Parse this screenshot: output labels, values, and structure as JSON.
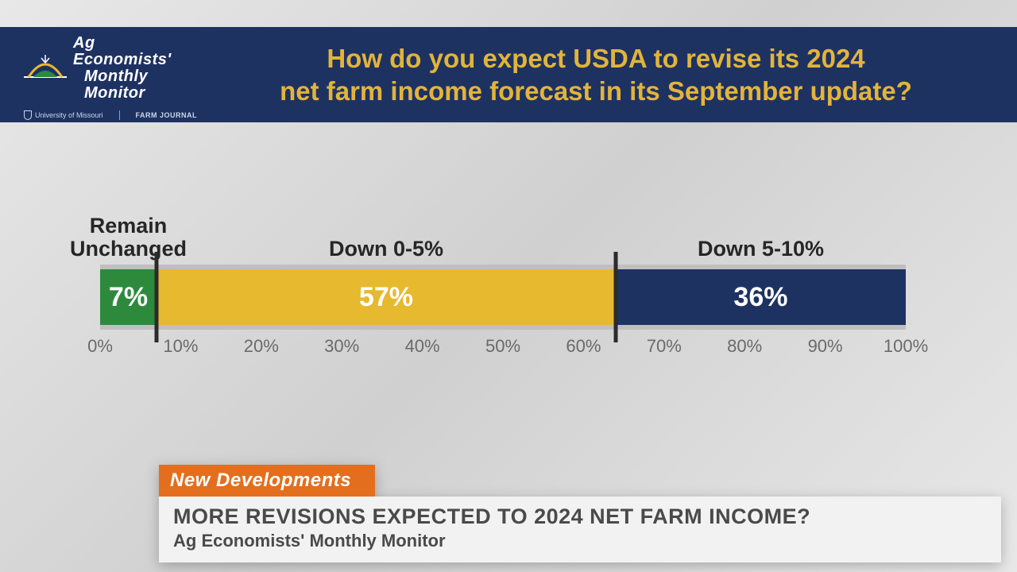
{
  "header": {
    "logo": {
      "line1": "Ag Economists'",
      "line2": "Monthly",
      "line3": "Monitor",
      "sub_left": "University of Missouri",
      "sub_right": "FARM JOURNAL"
    },
    "title_line1": "How do you expect USDA to revise its 2024",
    "title_line2": "net farm income forecast in its September update?",
    "banner_bg": "#1e3262",
    "title_color": "#e2b43a"
  },
  "chart": {
    "type": "stacked-bar-100",
    "segments": [
      {
        "label": "Remain\nUnchanged",
        "value": 7,
        "value_label": "7%",
        "color": "#2d8a3d",
        "text_color": "#ffffff"
      },
      {
        "label": "Down 0-5%",
        "value": 57,
        "value_label": "57%",
        "color": "#e7b92f",
        "text_color": "#ffffff"
      },
      {
        "label": "Down 5-10%",
        "value": 36,
        "value_label": "36%",
        "color": "#1e3262",
        "text_color": "#ffffff"
      }
    ],
    "xlim": [
      0,
      100
    ],
    "xtick_step": 10,
    "xtick_suffix": "%",
    "bar_border_color": "#bfbfbf",
    "grid_color": "#9a9a9a",
    "divider_color": "#2b2b2b",
    "label_fontsize": 27,
    "value_fontsize": 34,
    "tick_fontsize": 22,
    "tick_color": "#6a6a6a",
    "background": "linear-gradient(135deg,#e8e8e8,#d0d0d0,#e8e8e8)"
  },
  "lower_third": {
    "tag": "New Developments",
    "tag_bg": "#e36f1e",
    "headline": "MORE REVISIONS EXPECTED TO 2024 NET FARM INCOME?",
    "source": "Ag Economists' Monthly Monitor",
    "body_bg": "#f2f2f2",
    "text_color": "#4a4a4a"
  }
}
